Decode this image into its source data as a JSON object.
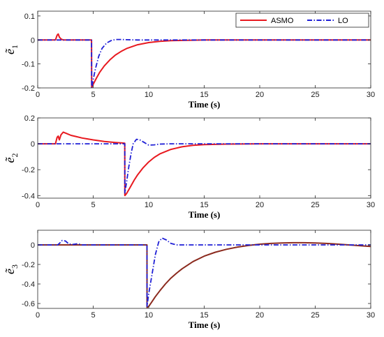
{
  "legend": {
    "entries": [
      {
        "name": "ASMO",
        "color": "#e8191f",
        "dash": "solid"
      },
      {
        "name": "LO",
        "color": "#1f1fd6",
        "dash": "dashdot"
      }
    ]
  },
  "chart_data": [
    {
      "type": "line",
      "ylabel": "ẽ",
      "ylabel_sub": "1",
      "xlabel": "Time (s)",
      "xlim": [
        0,
        30
      ],
      "ylim": [
        -0.2,
        0.12
      ],
      "xticks": [
        0,
        5,
        10,
        15,
        20,
        25,
        30
      ],
      "xtick_labels": [
        "0",
        "5",
        "10",
        "15",
        "20",
        "25",
        "30"
      ],
      "yticks": [
        0.1,
        0,
        -0.1,
        -0.2
      ],
      "ytick_labels": [
        "0.1",
        "0",
        "-0.1",
        "-0.2"
      ],
      "grid": false,
      "legend_position": "top-right",
      "series": [
        {
          "name": "ASMO",
          "color": "#e8191f",
          "dash": "solid",
          "x": [
            0,
            1.6,
            1.75,
            1.85,
            1.95,
            2.1,
            2.3,
            4.85,
            4.86,
            5.0,
            5.3,
            5.6,
            6.0,
            6.5,
            7.0,
            7.5,
            8.0,
            9.0,
            10.0,
            11.0,
            12.0,
            13.0,
            14.0,
            15.0,
            17.0,
            20.0,
            25.0,
            30.0
          ],
          "y": [
            0,
            0,
            0.02,
            0.025,
            0.012,
            0.004,
            0,
            0,
            -0.2,
            -0.185,
            -0.158,
            -0.134,
            -0.108,
            -0.083,
            -0.063,
            -0.048,
            -0.036,
            -0.02,
            -0.011,
            -0.006,
            -0.003,
            -0.002,
            -0.001,
            0,
            0,
            0,
            0,
            0
          ]
        },
        {
          "name": "LO",
          "color": "#1f1fd6",
          "dash": "dashdot",
          "x": [
            0,
            4.85,
            4.86,
            5.0,
            5.2,
            5.5,
            5.8,
            6.2,
            6.6,
            7.0,
            7.5,
            8.0,
            9.0,
            10.0,
            30.0
          ],
          "y": [
            0,
            0,
            -0.2,
            -0.165,
            -0.12,
            -0.068,
            -0.035,
            -0.013,
            -0.003,
            0.002,
            0.002,
            0.001,
            0,
            0,
            0
          ]
        }
      ]
    },
    {
      "type": "line",
      "ylabel": "ẽ",
      "ylabel_sub": "2",
      "xlabel": "Time (s)",
      "xlim": [
        0,
        30
      ],
      "ylim": [
        -0.42,
        0.2
      ],
      "xticks": [
        0,
        5,
        10,
        15,
        20,
        25,
        30
      ],
      "xtick_labels": [
        "0",
        "5",
        "10",
        "15",
        "20",
        "25",
        "30"
      ],
      "yticks": [
        0.2,
        0,
        -0.2,
        -0.4
      ],
      "ytick_labels": [
        "0.2",
        "0",
        "-0.2",
        "-0.4"
      ],
      "grid": false,
      "series": [
        {
          "name": "ASMO",
          "color": "#e8191f",
          "dash": "solid",
          "x": [
            0,
            1.6,
            1.75,
            1.85,
            1.95,
            2.1,
            2.3,
            2.6,
            3.0,
            3.5,
            4.0,
            5.0,
            6.0,
            7.0,
            7.5,
            7.84,
            7.85,
            8.0,
            8.3,
            8.7,
            9.0,
            9.5,
            10.0,
            10.5,
            11.0,
            12.0,
            13.0,
            14.0,
            15.0,
            17.0,
            20.0,
            30.0
          ],
          "y": [
            0,
            0,
            0.05,
            0.06,
            0.03,
            0.07,
            0.09,
            0.08,
            0.065,
            0.055,
            0.045,
            0.03,
            0.018,
            0.01,
            0.007,
            0.005,
            -0.4,
            -0.385,
            -0.34,
            -0.28,
            -0.24,
            -0.185,
            -0.14,
            -0.105,
            -0.078,
            -0.043,
            -0.023,
            -0.012,
            -0.006,
            -0.002,
            0,
            0
          ]
        },
        {
          "name": "LO",
          "color": "#1f1fd6",
          "dash": "dashdot",
          "x": [
            0,
            7.84,
            7.85,
            8.0,
            8.2,
            8.4,
            8.6,
            8.9,
            9.2,
            9.6,
            10.0,
            10.5,
            11.0,
            12.0,
            30.0
          ],
          "y": [
            0,
            0,
            -0.38,
            -0.3,
            -0.18,
            -0.08,
            0.0,
            0.035,
            0.03,
            0.01,
            -0.01,
            -0.008,
            -0.002,
            0,
            0
          ]
        }
      ]
    },
    {
      "type": "line",
      "ylabel": "ẽ",
      "ylabel_sub": "3",
      "xlabel": "Time (s)",
      "xlim": [
        0,
        30
      ],
      "ylim": [
        -0.65,
        0.15
      ],
      "xticks": [
        0,
        5,
        10,
        15,
        20,
        25,
        30
      ],
      "xtick_labels": [
        "0",
        "5",
        "10",
        "15",
        "20",
        "25",
        "30"
      ],
      "yticks": [
        0,
        -0.2,
        -0.4,
        -0.6
      ],
      "ytick_labels": [
        "0",
        "-0.2",
        "-0.4",
        "-0.6"
      ],
      "grid": false,
      "series": [
        {
          "name": "ASMO",
          "color": "#8b2a1e",
          "dash": "solid",
          "x": [
            0,
            9.84,
            9.85,
            10.0,
            10.3,
            10.6,
            11.0,
            11.5,
            12.0,
            12.5,
            13.0,
            14.0,
            15.0,
            16.0,
            17.0,
            18.0,
            19.0,
            20.0,
            21.0,
            22.0,
            23.0,
            24.0,
            25.0,
            26.0,
            27.0,
            28.0,
            29.0,
            30.0
          ],
          "y": [
            0,
            0,
            -0.64,
            -0.63,
            -0.58,
            -0.53,
            -0.47,
            -0.4,
            -0.34,
            -0.29,
            -0.245,
            -0.17,
            -0.115,
            -0.075,
            -0.045,
            -0.022,
            -0.005,
            0.007,
            0.015,
            0.02,
            0.022,
            0.022,
            0.02,
            0.015,
            0.008,
            0.0,
            -0.008,
            -0.016
          ]
        },
        {
          "name": "LO",
          "color": "#1f1fd6",
          "dash": "dashdot",
          "x": [
            0,
            1.8,
            2.0,
            2.2,
            2.5,
            2.8,
            3.2,
            3.6,
            4.0,
            9.84,
            9.85,
            10.0,
            10.3,
            10.6,
            10.9,
            11.2,
            11.6,
            12.0,
            12.5,
            13.0,
            14.0,
            30.0
          ],
          "y": [
            0,
            0,
            0.02,
            0.045,
            0.04,
            0.01,
            0.005,
            0.012,
            0.0,
            0,
            -0.63,
            -0.5,
            -0.3,
            -0.1,
            0.03,
            0.07,
            0.05,
            0.015,
            0.0,
            0.0,
            0.0,
            0.0
          ]
        }
      ]
    }
  ]
}
